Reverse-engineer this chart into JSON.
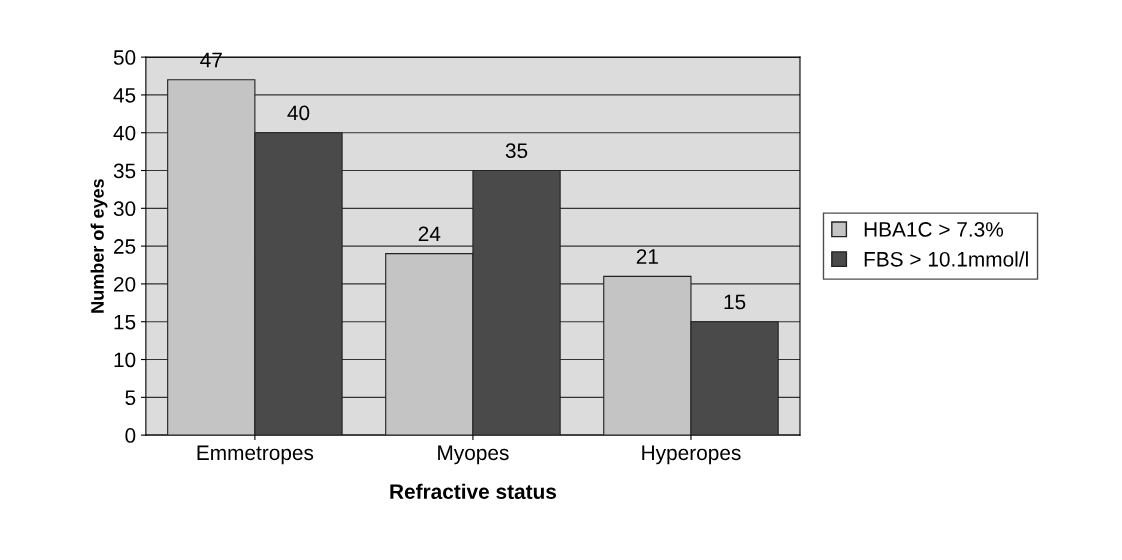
{
  "chart_data": {
    "type": "bar",
    "xlabel": "Refractive status",
    "ylabel": "Number of eyes",
    "categories": [
      "Emmetropes",
      "Myopes",
      "Hyperopes"
    ],
    "series": [
      {
        "name": "HBA1C > 7.3%",
        "color": "#c4c4c4",
        "values": [
          47,
          24,
          21
        ]
      },
      {
        "name": "FBS > 10.1mmol/l",
        "color": "#4a4a4a",
        "values": [
          40,
          35,
          15
        ]
      }
    ],
    "ylim": [
      0,
      50
    ],
    "yticks": [
      0,
      5,
      10,
      15,
      20,
      25,
      30,
      35,
      40,
      45,
      50
    ],
    "grid": "y",
    "legend": "right",
    "data_labels": true
  }
}
